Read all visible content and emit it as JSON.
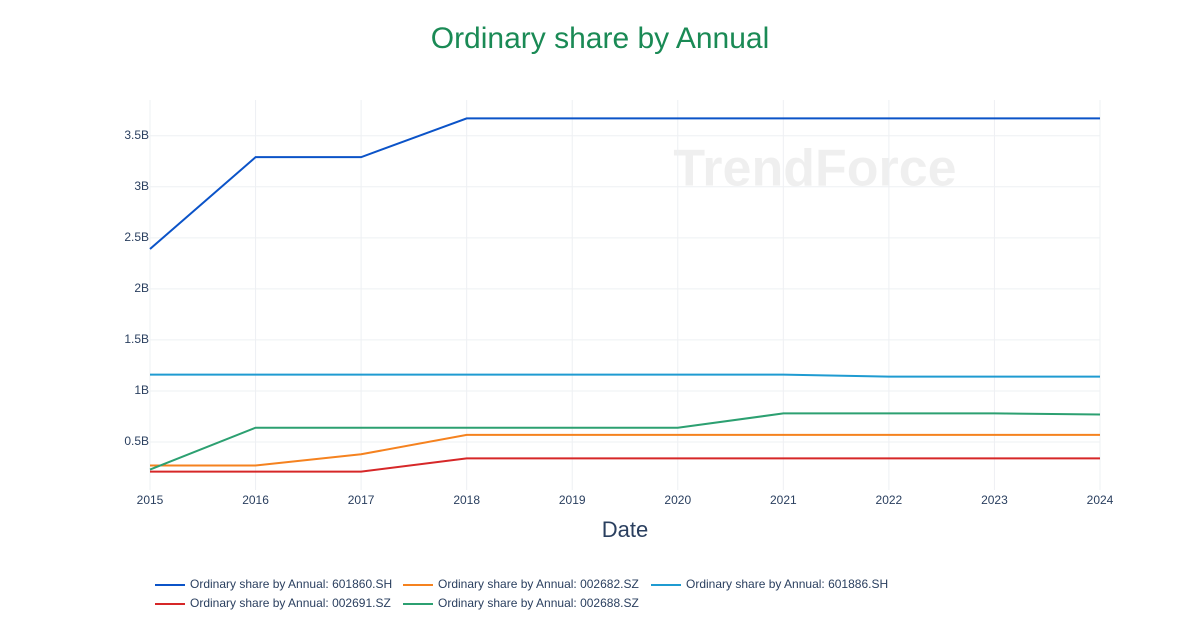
{
  "chart_data": {
    "type": "line",
    "title": "Ordinary share by Annual",
    "x_label": "Date",
    "watermark": "TrendForce",
    "x": [
      2015,
      2016,
      2017,
      2018,
      2019,
      2020,
      2021,
      2022,
      2023,
      2024
    ],
    "xlim": [
      2015,
      2024
    ],
    "xticks": [
      2015,
      2016,
      2017,
      2018,
      2019,
      2020,
      2021,
      2022,
      2023,
      2024
    ],
    "ylim": [
      30000000,
      3850000000
    ],
    "yticks": [
      {
        "value": 500000000,
        "label": "0.5B"
      },
      {
        "value": 1000000000,
        "label": "1B"
      },
      {
        "value": 1500000000,
        "label": "1.5B"
      },
      {
        "value": 2000000000,
        "label": "2B"
      },
      {
        "value": 2500000000,
        "label": "2.5B"
      },
      {
        "value": 3000000000,
        "label": "3B"
      },
      {
        "value": 3500000000,
        "label": "3.5B"
      }
    ],
    "grid": true,
    "series": [
      {
        "name": "Ordinary share by Annual: 601860.SH",
        "color": "#0b53c8",
        "values": [
          2390000000,
          3290000000,
          3290000000,
          3670000000,
          3670000000,
          3670000000,
          3670000000,
          3670000000,
          3670000000,
          3670000000
        ]
      },
      {
        "name": "Ordinary share by Annual: 002682.SZ",
        "color": "#f5821f",
        "values": [
          270000000,
          270000000,
          380000000,
          570000000,
          570000000,
          570000000,
          570000000,
          570000000,
          570000000,
          570000000
        ]
      },
      {
        "name": "Ordinary share by Annual: 601886.SH",
        "color": "#1f9bd1",
        "values": [
          1160000000,
          1160000000,
          1160000000,
          1160000000,
          1160000000,
          1160000000,
          1160000000,
          1140000000,
          1140000000,
          1140000000
        ]
      },
      {
        "name": "Ordinary share by Annual: 002691.SZ",
        "color": "#d62728",
        "values": [
          210000000,
          210000000,
          210000000,
          340000000,
          340000000,
          340000000,
          340000000,
          340000000,
          340000000,
          340000000
        ]
      },
      {
        "name": "Ordinary share by Annual: 002688.SZ",
        "color": "#2ca071",
        "values": [
          230000000,
          640000000,
          640000000,
          640000000,
          640000000,
          640000000,
          780000000,
          780000000,
          780000000,
          770000000
        ]
      }
    ]
  }
}
